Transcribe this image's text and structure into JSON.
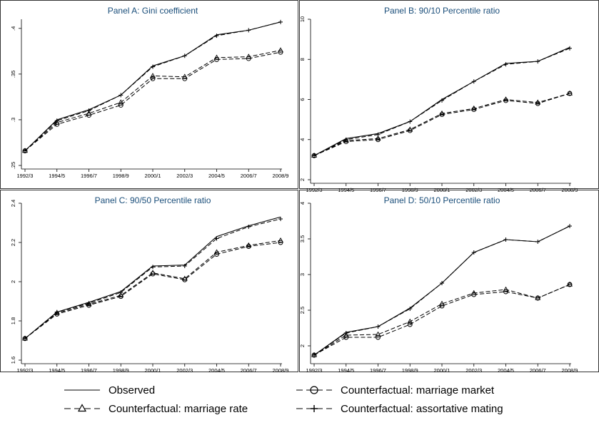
{
  "chart_data": [
    {
      "type": "line",
      "title": "Panel A: Gini coefficient",
      "x": [
        "1992/3",
        "1994/5",
        "1996/7",
        "1998/9",
        "2000/1",
        "2002/3",
        "2004/5",
        "2006/7",
        "2008/9"
      ],
      "ylim": [
        0.25,
        0.41
      ],
      "yticks": [
        0.25,
        0.3,
        0.35,
        0.4
      ],
      "ytick_labels": [
        ".25",
        ".3",
        ".35",
        ".4"
      ],
      "series": [
        {
          "name": "Observed",
          "style": "observed",
          "values": [
            0.266,
            0.3,
            0.311,
            0.327,
            0.359,
            0.37,
            0.393,
            0.398,
            0.407
          ]
        },
        {
          "name": "Counterfactual: marriage market",
          "style": "market",
          "values": [
            0.266,
            0.295,
            0.305,
            0.316,
            0.345,
            0.345,
            0.366,
            0.367,
            0.374
          ]
        },
        {
          "name": "Counterfactual: marriage rate",
          "style": "rate",
          "values": [
            0.266,
            0.297,
            0.307,
            0.319,
            0.348,
            0.347,
            0.368,
            0.369,
            0.376
          ]
        },
        {
          "name": "Counterfactual: assortative mating",
          "style": "assort",
          "values": [
            0.266,
            0.299,
            0.31,
            0.327,
            0.358,
            0.37,
            0.392,
            0.398,
            0.407
          ]
        }
      ]
    },
    {
      "type": "line",
      "title": "Panel B: 90/10 Percentile ratio",
      "x": [
        "1992/3",
        "1994/5",
        "1996/7",
        "1998/9",
        "2000/1",
        "2002/3",
        "2004/5",
        "2006/7",
        "2008/9"
      ],
      "ylim": [
        2,
        10
      ],
      "yticks": [
        2,
        4,
        6,
        8,
        10
      ],
      "ytick_labels": [
        "2",
        "4",
        "6",
        "8",
        "10"
      ],
      "series": [
        {
          "name": "Observed",
          "style": "observed",
          "values": [
            3.2,
            4.05,
            4.3,
            4.9,
            6.0,
            6.9,
            7.8,
            7.9,
            8.6
          ]
        },
        {
          "name": "Counterfactual: marriage market",
          "style": "market",
          "values": [
            3.2,
            3.9,
            4.0,
            4.45,
            5.25,
            5.5,
            5.95,
            5.8,
            6.3
          ]
        },
        {
          "name": "Counterfactual: marriage rate",
          "style": "rate",
          "values": [
            3.2,
            3.95,
            4.05,
            4.5,
            5.3,
            5.55,
            6.0,
            5.85,
            6.3
          ]
        },
        {
          "name": "Counterfactual: assortative mating",
          "style": "assort",
          "values": [
            3.2,
            4.0,
            4.25,
            4.9,
            5.95,
            6.9,
            7.75,
            7.9,
            8.55
          ]
        }
      ]
    },
    {
      "type": "line",
      "title": "Panel C: 90/50 Percentile ratio",
      "x": [
        "1992/3",
        "1994/5",
        "1996/7",
        "1998/9",
        "2000/1",
        "2002/3",
        "2004/5",
        "2006/7",
        "2008/9"
      ],
      "ylim": [
        1.6,
        2.4
      ],
      "yticks": [
        1.6,
        1.8,
        2.0,
        2.2,
        2.4
      ],
      "ytick_labels": [
        "1.6",
        "1.8",
        "2",
        "2.2",
        "2.4"
      ],
      "series": [
        {
          "name": "Observed",
          "style": "observed",
          "values": [
            1.71,
            1.845,
            1.895,
            1.95,
            2.08,
            2.085,
            2.23,
            2.285,
            2.33
          ]
        },
        {
          "name": "Counterfactual: marriage market",
          "style": "market",
          "values": [
            1.71,
            1.835,
            1.88,
            1.925,
            2.04,
            2.01,
            2.14,
            2.18,
            2.2
          ]
        },
        {
          "name": "Counterfactual: marriage rate",
          "style": "rate",
          "values": [
            1.71,
            1.84,
            1.885,
            1.93,
            2.045,
            2.015,
            2.15,
            2.185,
            2.21
          ]
        },
        {
          "name": "Counterfactual: assortative mating",
          "style": "assort",
          "values": [
            1.71,
            1.845,
            1.89,
            1.945,
            2.075,
            2.08,
            2.22,
            2.28,
            2.32
          ]
        }
      ]
    },
    {
      "type": "line",
      "title": "Panel D: 50/10 Percentile ratio",
      "x": [
        "1992/3",
        "1994/5",
        "1996/7",
        "1998/9",
        "2000/1",
        "2002/3",
        "2004/5",
        "2006/7",
        "2008/9"
      ],
      "ylim": [
        1.8,
        4.0
      ],
      "yticks": [
        2,
        2.5,
        3,
        3.5,
        4
      ],
      "ytick_labels": [
        "2",
        "2.5",
        "3",
        "3.5",
        "4"
      ],
      "series": [
        {
          "name": "Observed",
          "style": "observed",
          "values": [
            1.87,
            2.19,
            2.27,
            2.53,
            2.88,
            3.31,
            3.49,
            3.46,
            3.68
          ]
        },
        {
          "name": "Counterfactual: marriage market",
          "style": "market",
          "values": [
            1.87,
            2.12,
            2.12,
            2.3,
            2.56,
            2.72,
            2.76,
            2.67,
            2.86
          ]
        },
        {
          "name": "Counterfactual: marriage rate",
          "style": "rate",
          "values": [
            1.87,
            2.15,
            2.16,
            2.34,
            2.59,
            2.74,
            2.79,
            2.67,
            2.86
          ]
        },
        {
          "name": "Counterfactual: assortative mating",
          "style": "assort",
          "values": [
            1.87,
            2.18,
            2.27,
            2.52,
            2.88,
            3.31,
            3.49,
            3.46,
            3.68
          ]
        }
      ]
    }
  ],
  "legend": {
    "placement": "bottom",
    "items": [
      {
        "label": "Observed",
        "style": "observed"
      },
      {
        "label": "Counterfactual: marriage market",
        "style": "market"
      },
      {
        "label": "Counterfactual: marriage rate",
        "style": "rate"
      },
      {
        "label": "Counterfactual: assortative mating",
        "style": "assort"
      }
    ]
  }
}
